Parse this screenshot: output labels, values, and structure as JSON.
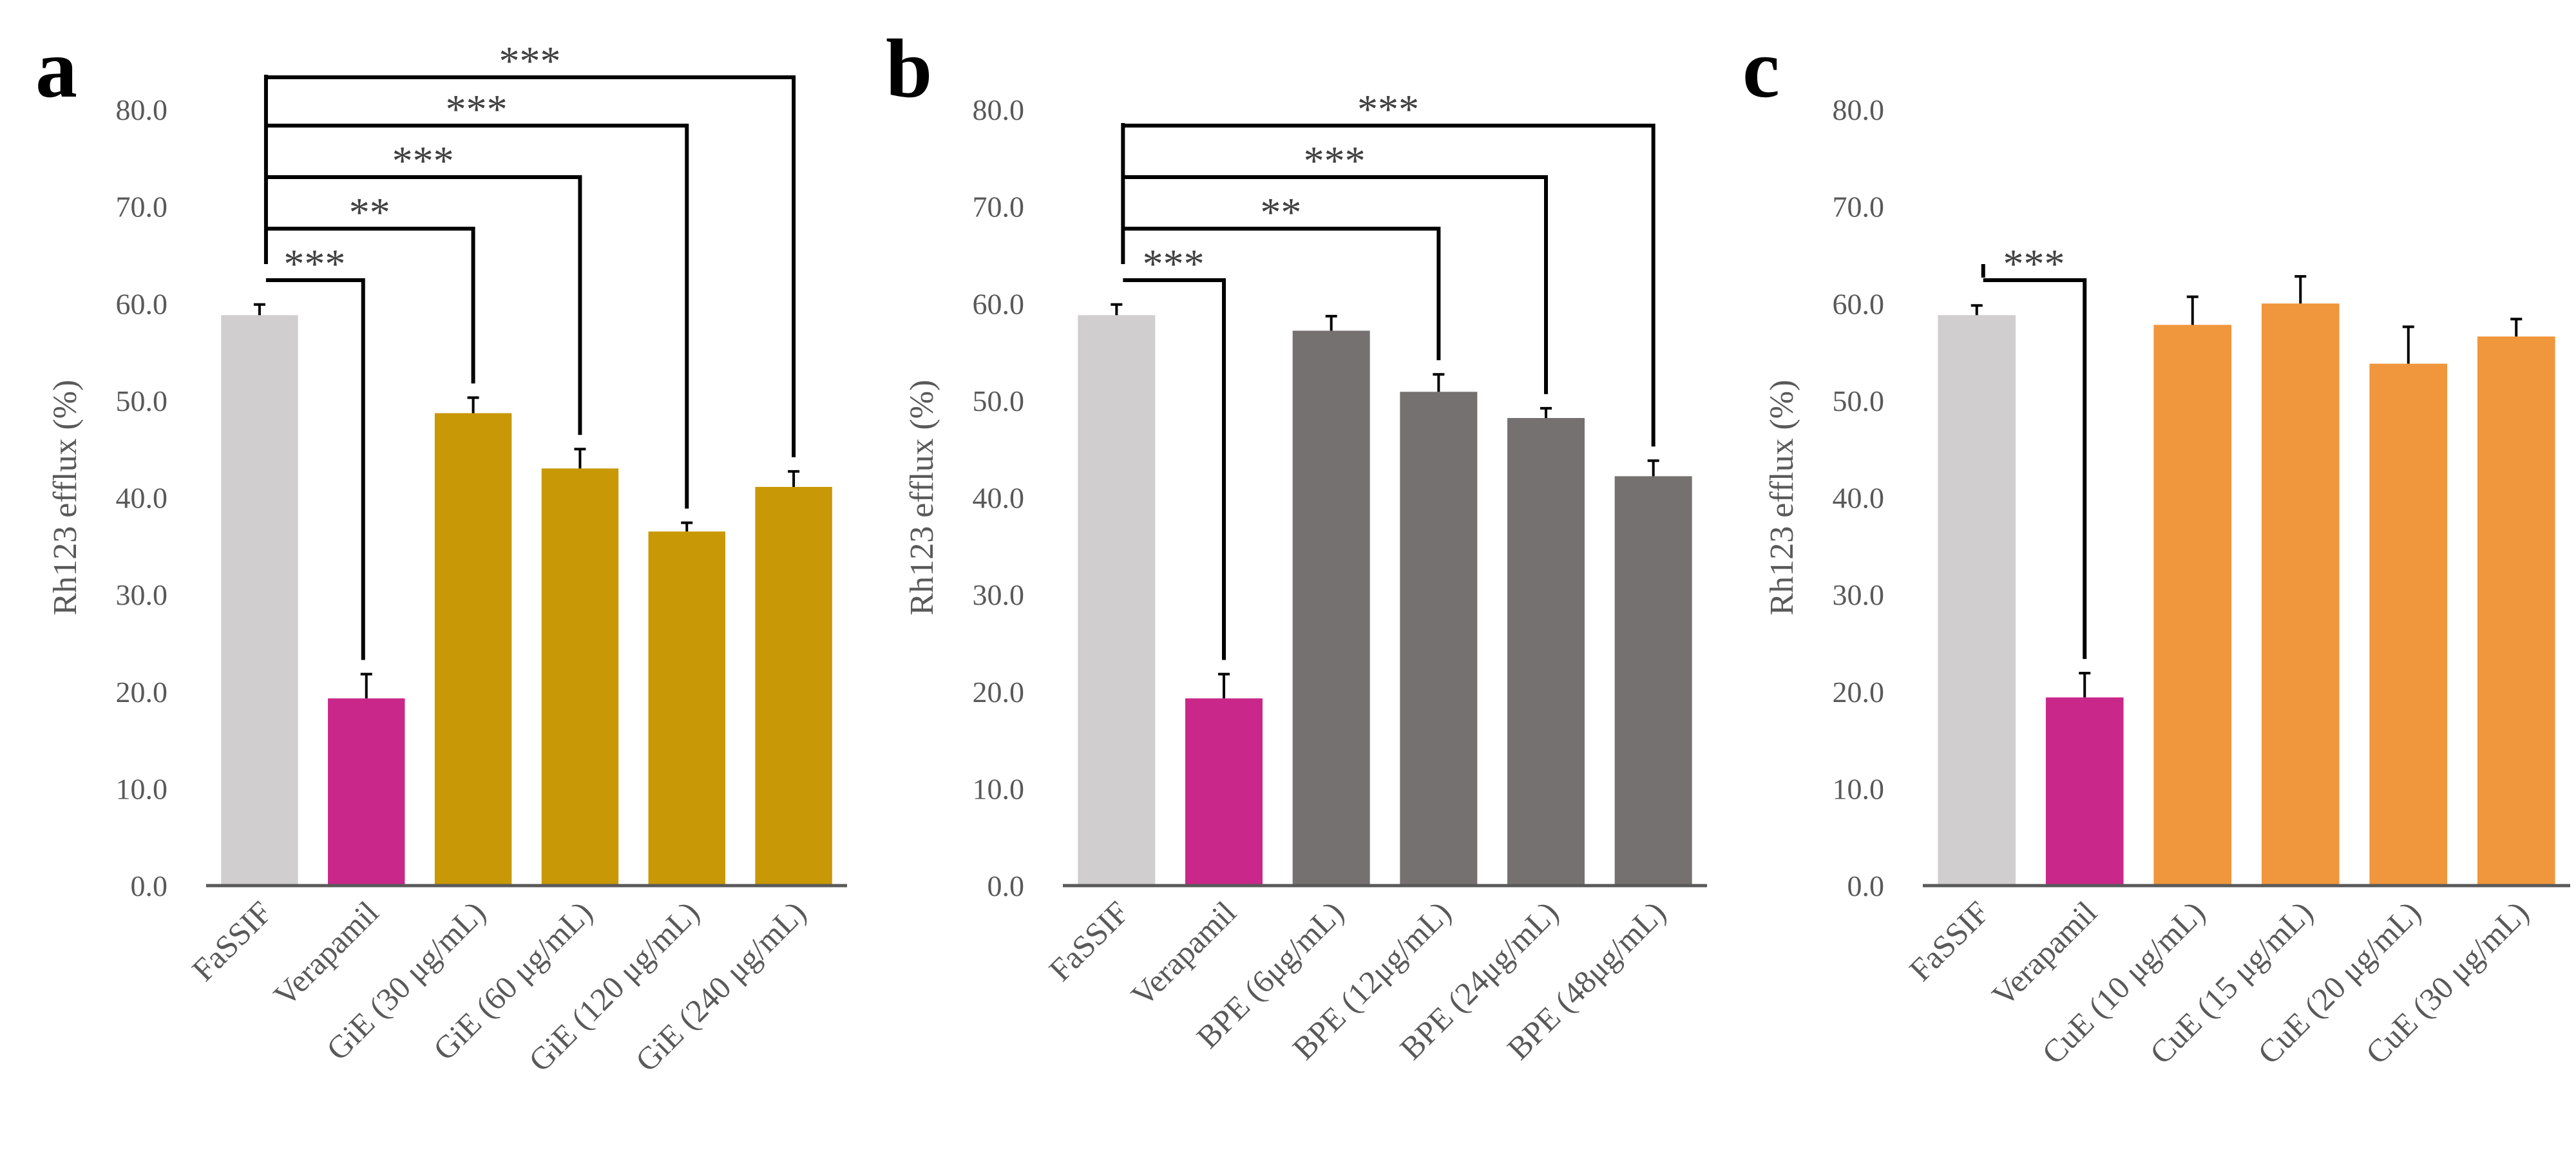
{
  "chart_data": [
    {
      "panel": "a",
      "type": "bar",
      "ylabel": "Rh123 efflux (%)",
      "ylim": [
        0,
        80
      ],
      "yticks": [
        "0.0",
        "10.0",
        "20.0",
        "30.0",
        "40.0",
        "50.0",
        "60.0",
        "70.0",
        "80.0"
      ],
      "categories": [
        "FaSSIF",
        "Verapamil",
        "GiE (30 μg/mL)",
        "GiE (60 μg/mL)",
        "GiE (120 μg/mL)",
        "GiE (240 μg/mL)"
      ],
      "values": [
        58.8,
        19.3,
        48.7,
        43.0,
        36.5,
        41.1
      ],
      "errors": [
        1.1,
        2.5,
        1.6,
        2.0,
        0.9,
        1.6
      ],
      "colors": [
        "#d0cece",
        "#c9278a",
        "#c89806",
        "#c89806",
        "#c89806",
        "#c89806"
      ],
      "significance": [
        {
          "to": 1,
          "label": "***"
        },
        {
          "to": 2,
          "label": "**"
        },
        {
          "to": 3,
          "label": "***"
        },
        {
          "to": 4,
          "label": "***"
        },
        {
          "to": 5,
          "label": "***"
        }
      ]
    },
    {
      "panel": "b",
      "type": "bar",
      "ylabel": "Rh123 efflux (%)",
      "ylim": [
        0,
        80
      ],
      "yticks": [
        "0.0",
        "10.0",
        "20.0",
        "30.0",
        "40.0",
        "50.0",
        "60.0",
        "70.0",
        "80.0"
      ],
      "categories": [
        "FaSSIF",
        "Verapamil",
        "BPE (6μg/mL)",
        "BPE (12μg/mL)",
        "BPE (24μg/mL)",
        "BPE (48μg/mL)"
      ],
      "values": [
        58.8,
        19.3,
        57.2,
        50.9,
        48.2,
        42.2
      ],
      "errors": [
        1.1,
        2.5,
        1.5,
        1.8,
        1.0,
        1.6
      ],
      "colors": [
        "#d0cece",
        "#c9278a",
        "#767171",
        "#767171",
        "#767171",
        "#767171"
      ],
      "significance": [
        {
          "to": 1,
          "label": "***"
        },
        {
          "to": 3,
          "label": "**"
        },
        {
          "to": 4,
          "label": "***"
        },
        {
          "to": 5,
          "label": "***"
        }
      ]
    },
    {
      "panel": "c",
      "type": "bar",
      "ylabel": "Rh123 efflux (%)",
      "ylim": [
        0,
        80
      ],
      "yticks": [
        "0.0",
        "10.0",
        "20.0",
        "30.0",
        "40.0",
        "50.0",
        "60.0",
        "70.0",
        "80.0"
      ],
      "categories": [
        "FaSSIF",
        "Verapamil",
        "CuE (10 μg/mL)",
        "CuE (15 μg/mL)",
        "CuE (20 μg/mL)",
        "CuE (30 μg/mL)"
      ],
      "values": [
        58.8,
        19.4,
        57.8,
        60.0,
        53.8,
        56.6
      ],
      "errors": [
        1.0,
        2.5,
        2.9,
        2.8,
        3.8,
        1.8
      ],
      "colors": [
        "#d0cece",
        "#c9278a",
        "#f0963c",
        "#f0963c",
        "#f0963c",
        "#f0963c"
      ],
      "significance": [
        {
          "to": 1,
          "label": "***"
        }
      ]
    }
  ]
}
